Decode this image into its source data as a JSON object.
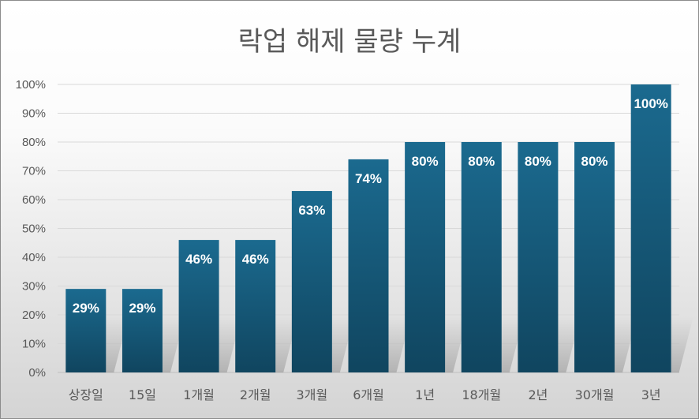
{
  "chart_data": {
    "type": "bar",
    "title": "락업 해제 물량 누계",
    "categories": [
      "상장일",
      "15일",
      "1개월",
      "2개월",
      "3개월",
      "6개월",
      "1년",
      "18개월",
      "2년",
      "30개월",
      "3년"
    ],
    "values": [
      29,
      29,
      46,
      46,
      63,
      74,
      80,
      80,
      80,
      80,
      100
    ],
    "data_labels": [
      "29%",
      "29%",
      "46%",
      "46%",
      "63%",
      "74%",
      "80%",
      "80%",
      "80%",
      "80%",
      "100%"
    ],
    "y_ticks": [
      "0%",
      "10%",
      "20%",
      "30%",
      "40%",
      "50%",
      "60%",
      "70%",
      "80%",
      "90%",
      "100%"
    ],
    "ylim": [
      0,
      100
    ],
    "grid": true,
    "legend": "none",
    "xlabel": "",
    "ylabel": "",
    "colors": {
      "bar_top": "#1b6a8f",
      "bar_bottom": "#10455f",
      "grid": "#d9d9d9",
      "axis": "#bfbfbf"
    }
  }
}
